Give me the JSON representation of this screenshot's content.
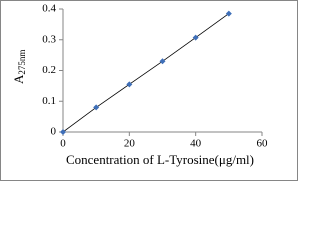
{
  "chart_data": {
    "type": "scatter",
    "xlabel": "Concentration of L-Tyrosine(μg/ml)",
    "ylabel": "A",
    "ylabel_sub": "275nm",
    "x": [
      0,
      10,
      20,
      30,
      40,
      50
    ],
    "series": [
      {
        "color": "#3f6fb8",
        "values": [
          0,
          0.08,
          0.155,
          0.23,
          0.307,
          0.385
        ]
      }
    ],
    "line_color": "#000000",
    "xlim": [
      0,
      60
    ],
    "xticks": [
      0,
      20,
      40,
      60
    ],
    "ylim": [
      0,
      0.4
    ],
    "yticks": [
      0,
      0.1,
      0.2,
      0.3,
      0.4
    ]
  }
}
